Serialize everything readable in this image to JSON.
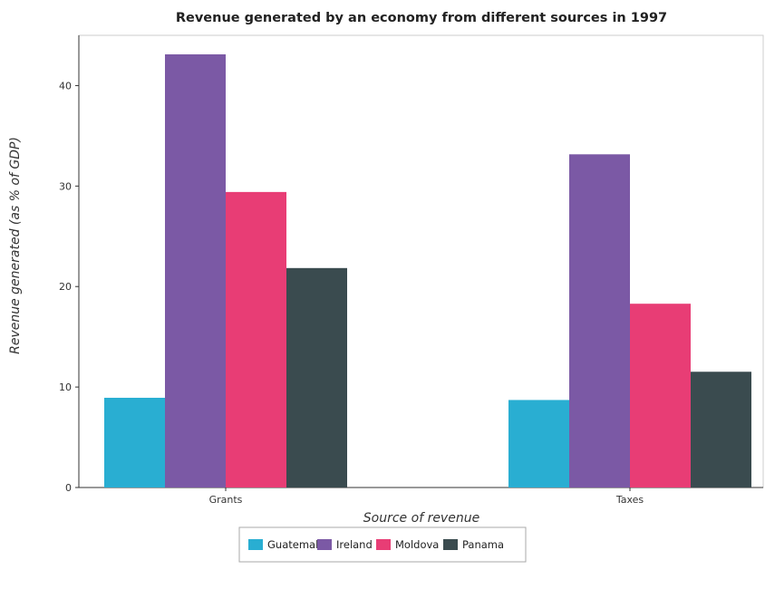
{
  "chart_data": {
    "type": "bar",
    "title": "Revenue generated by an economy from different sources in 1997",
    "xlabel": "Source of revenue",
    "ylabel": "Revenue generated (as % of GDP)",
    "categories": [
      "Grants",
      "Taxes"
    ],
    "series": [
      {
        "name": "Guatemala",
        "color": "#29aed2",
        "values": [
          8.93,
          8.71
        ]
      },
      {
        "name": "Ireland",
        "color": "#7b59a5",
        "values": [
          43.11,
          33.16
        ]
      },
      {
        "name": "Moldova",
        "color": "#e83d75",
        "values": [
          29.41,
          18.29
        ]
      },
      {
        "name": "Panama",
        "color": "#3a4b4f",
        "values": [
          21.84,
          11.52
        ]
      }
    ],
    "ylim": [
      0,
      45
    ],
    "yticks": [
      0,
      10,
      20,
      30,
      40
    ],
    "grid": false,
    "legend_position": "bottom-center"
  }
}
